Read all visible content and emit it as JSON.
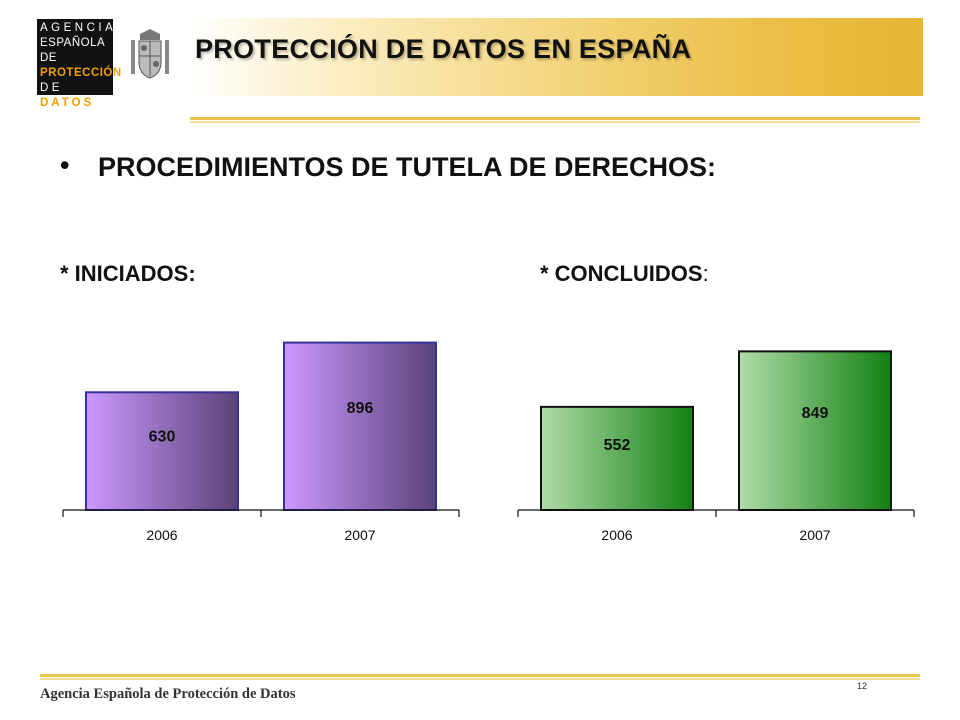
{
  "logo": {
    "line1": "AGENCIA",
    "line2": "ESPAÑOLA DE",
    "line3": "PROTECCIÓN",
    "line4": "DE",
    "line4b": "DATOS"
  },
  "header": {
    "title": "PROTECCIÓN DE DATOS EN ESPAÑA"
  },
  "section": {
    "bullet": "•",
    "heading": "PROCEDIMIENTOS DE TUTELA DE DERECHOS:"
  },
  "charts_labels": {
    "left": "* INICIADOS:",
    "right_main": "* CONCLUIDOS",
    "right_colon": ":"
  },
  "chart_data": [
    {
      "type": "bar",
      "title": "",
      "categories": [
        "2006",
        "2007"
      ],
      "values": [
        630,
        896
      ],
      "ylim": [
        0,
        1000
      ],
      "grid": false,
      "colors": {
        "start": "#cc99ff",
        "end": "#5a4278",
        "border": "#333399"
      }
    },
    {
      "type": "bar",
      "title": "",
      "categories": [
        "2006",
        "2007"
      ],
      "values": [
        552,
        849
      ],
      "ylim": [
        0,
        1000
      ],
      "grid": false,
      "colors": {
        "start": "#b0dca8",
        "end": "#138013",
        "border": "#111111"
      }
    }
  ],
  "footer": {
    "org": "Agencia Española de Protección de Datos",
    "page": "12"
  }
}
